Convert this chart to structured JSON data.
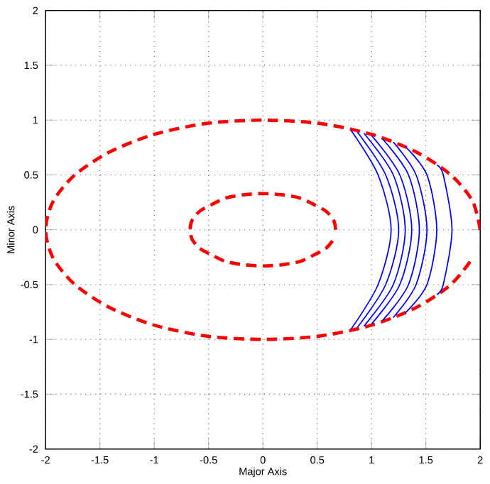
{
  "chart_data": {
    "type": "line",
    "xlabel": "Major Axis",
    "ylabel": "Minor Axis",
    "xlim": [
      -2,
      2
    ],
    "ylim": [
      -2,
      2
    ],
    "xticks": [
      -2,
      -1.5,
      -1,
      -0.5,
      0,
      0.5,
      1,
      1.5,
      2
    ],
    "yticks": [
      -2,
      -1.5,
      -1,
      -0.5,
      0,
      0.5,
      1,
      1.5,
      2
    ],
    "grid": true,
    "marker": "none",
    "series": [
      {
        "color": "#ff0000",
        "line_style": "dashed",
        "x": [
          2,
          1.93,
          1.73,
          1.41,
          1,
          0.52,
          0,
          -0.52,
          -1,
          -1.41,
          -1.73,
          -1.93,
          -2,
          -1.93,
          -1.73,
          -1.41,
          -1,
          -0.52,
          0,
          0.52,
          1,
          1.41,
          1.73,
          1.93
        ],
        "values": [
          0,
          0.26,
          0.5,
          0.71,
          0.87,
          0.97,
          1,
          0.97,
          0.87,
          0.71,
          0.5,
          0.26,
          0,
          -0.26,
          -0.5,
          -0.71,
          -0.87,
          -0.97,
          -1,
          -0.97,
          -0.87,
          -0.71,
          -0.5,
          -0.26
        ]
      },
      {
        "color": "#ff0000",
        "line_style": "dashed",
        "x": [
          0.67,
          0.65,
          0.58,
          0.47,
          0.34,
          0.17,
          0,
          -0.17,
          -0.34,
          -0.47,
          -0.58,
          -0.65,
          -0.67,
          -0.65,
          -0.58,
          -0.47,
          -0.34,
          -0.17,
          0,
          0.17,
          0.34,
          0.47,
          0.58,
          0.65
        ],
        "values": [
          0,
          0.09,
          0.17,
          0.23,
          0.29,
          0.32,
          0.33,
          0.32,
          0.29,
          0.23,
          0.17,
          0.09,
          0,
          -0.09,
          -0.17,
          -0.23,
          -0.29,
          -0.32,
          -0.33,
          -0.32,
          -0.29,
          -0.23,
          -0.17,
          -0.09
        ]
      },
      {
        "color": "#0000ff",
        "line_style": "solid",
        "x": [
          0.81,
          1.06,
          1.18,
          1.06,
          0.81
        ],
        "values": [
          0.91,
          0.5,
          0,
          -0.5,
          -0.91
        ]
      },
      {
        "color": "#0000ff",
        "line_style": "solid",
        "x": [
          0.87,
          1.13,
          1.25,
          1.13,
          0.87
        ],
        "values": [
          0.89,
          0.5,
          0,
          -0.5,
          -0.89
        ]
      },
      {
        "color": "#0000ff",
        "line_style": "solid",
        "x": [
          0.93,
          1.2,
          1.31,
          1.2,
          0.93
        ],
        "values": [
          0.88,
          0.5,
          0,
          -0.5,
          -0.88
        ]
      },
      {
        "color": "#0000ff",
        "line_style": "solid",
        "x": [
          1.0,
          1.26,
          1.37,
          1.26,
          1.0
        ],
        "values": [
          0.86,
          0.5,
          0,
          -0.5,
          -0.86
        ]
      },
      {
        "color": "#0000ff",
        "line_style": "solid",
        "x": [
          1.1,
          1.34,
          1.44,
          1.34,
          1.1
        ],
        "values": [
          0.83,
          0.5,
          0,
          -0.5,
          -0.83
        ]
      },
      {
        "color": "#0000ff",
        "line_style": "solid",
        "x": [
          1.2,
          1.41,
          1.51,
          1.41,
          1.2
        ],
        "values": [
          0.8,
          0.5,
          0,
          -0.5,
          -0.8
        ]
      },
      {
        "color": "#0000ff",
        "line_style": "solid",
        "x": [
          1.31,
          1.51,
          1.6,
          1.51,
          1.31
        ],
        "values": [
          0.76,
          0.5,
          0,
          -0.5,
          -0.76
        ]
      },
      {
        "color": "#0000ff",
        "line_style": "solid",
        "x": [
          1.6,
          1.66,
          1.74,
          1.66,
          1.6
        ],
        "values": [
          0.59,
          0.5,
          0,
          -0.5,
          -0.59
        ]
      }
    ]
  }
}
